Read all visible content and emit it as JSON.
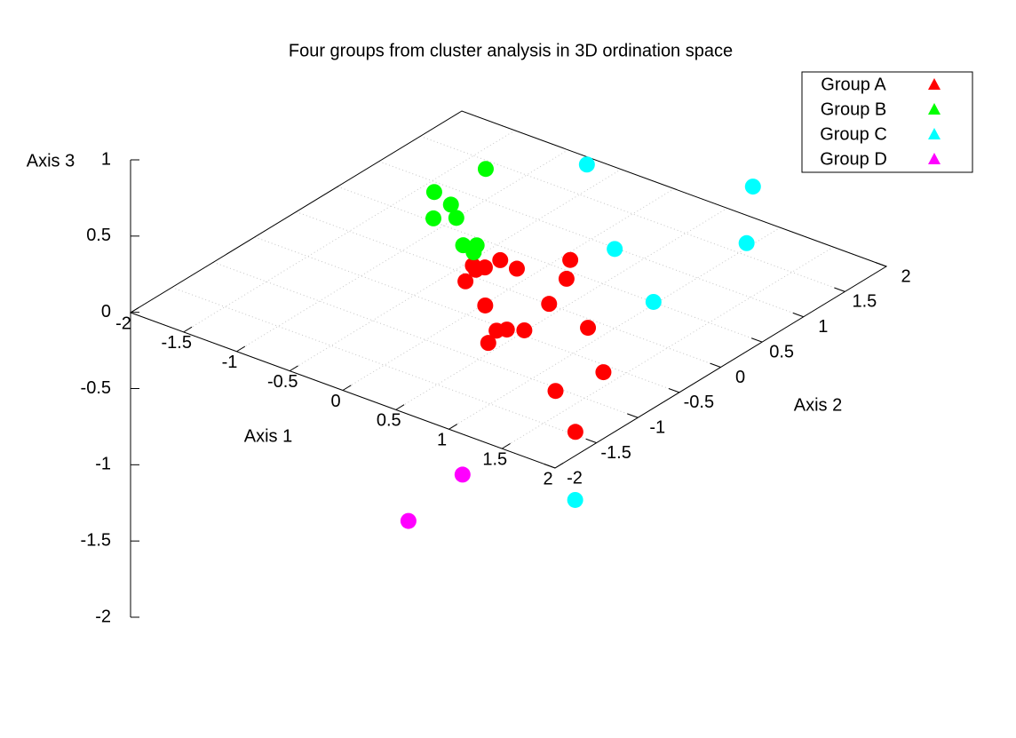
{
  "chart_data": {
    "type": "scatter3d",
    "title": "Four groups from cluster analysis in 3D ordination space",
    "x_label": "Axis 1",
    "y_label": "Axis 2",
    "z_label": "Axis 3",
    "xlim": [
      -2,
      2
    ],
    "ylim": [
      -2,
      2
    ],
    "zlim": [
      -2,
      1
    ],
    "xticks": [
      -2,
      -1.5,
      -1,
      -0.5,
      0,
      0.5,
      1,
      1.5,
      2
    ],
    "yticks": [
      -2,
      -1.5,
      -1,
      -0.5,
      0,
      0.5,
      1,
      1.5,
      2
    ],
    "zticks": [
      -2,
      -1.5,
      -1,
      -0.5,
      0,
      0.5,
      1
    ],
    "grid": true,
    "legend_position": "top-right",
    "series": [
      {
        "name": "Group A",
        "color": "#ff0000",
        "x": [
          0.0,
          0.09,
          0.11,
          0.29,
          0.52,
          0.68,
          0.11,
          0.06,
          0.46,
          0.82,
          1.28,
          0.77,
          0.82,
          0.93,
          0.84,
          1.8,
          1.7,
          1.77
        ],
        "y": [
          -0.43,
          -0.4,
          -0.24,
          -0.27,
          0.08,
          -0.17,
          -0.66,
          -0.47,
          -0.87,
          -0.56,
          -0.68,
          -1.13,
          -1.07,
          -1.0,
          -1.32,
          -1.16,
          -1.61,
          -1.46
        ],
        "z": [
          0.3,
          0.3,
          0.3,
          0.3,
          0.3,
          0.3,
          0.3,
          0.3,
          0.3,
          0.3,
          0.3,
          0.3,
          0.3,
          0.3,
          0.3,
          0.3,
          0.3,
          0.0
        ]
      },
      {
        "name": "Group B",
        "color": "#00ff00",
        "x": [
          -0.12,
          -0.2,
          0.02,
          0.18,
          0.05,
          0.19,
          0.27,
          0.32
        ],
        "y": [
          -0.12,
          -0.64,
          -0.72,
          -0.86,
          -0.97,
          -0.79,
          -0.73,
          -0.83
        ],
        "z": [
          0.8,
          0.8,
          0.8,
          0.8,
          0.8,
          0.6,
          0.6,
          0.6
        ]
      },
      {
        "name": "Group C",
        "color": "#00ffff",
        "x": [
          -0.01,
          1.18,
          0.97,
          1.69,
          1.71,
          1.69
        ],
        "y": [
          0.96,
          1.44,
          0.04,
          0.71,
          -0.44,
          -1.36
        ],
        "z": [
          0.5,
          0.5,
          0.5,
          0.5,
          0.5,
          -0.5
        ]
      },
      {
        "name": "Group D",
        "color": "#ff00ff",
        "x": [
          0.34,
          0.47
        ],
        "y": [
          -0.99,
          -1.81
        ],
        "z": [
          -0.8,
          -0.8
        ]
      }
    ]
  }
}
